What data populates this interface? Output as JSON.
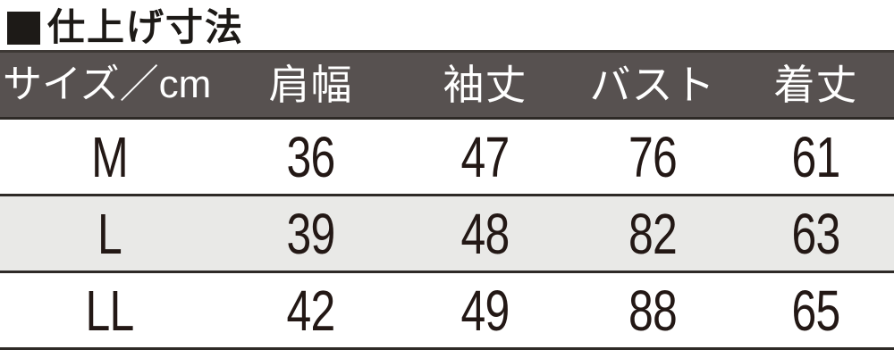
{
  "title": {
    "text": "仕上げ寸法"
  },
  "table": {
    "columns": [
      "サイズ／cm",
      "肩幅",
      "袖丈",
      "バスト",
      "着丈"
    ],
    "rows": [
      {
        "size": "M",
        "values": [
          "36",
          "47",
          "76",
          "61"
        ]
      },
      {
        "size": "L",
        "values": [
          "39",
          "48",
          "82",
          "63"
        ]
      },
      {
        "size": "LL",
        "values": [
          "42",
          "49",
          "88",
          "65"
        ]
      }
    ]
  },
  "colors": {
    "header_bg": "#575150",
    "header_text": "#ffffff",
    "alt_row_bg": "#e9e9e7",
    "rule_line": "#2e2a27",
    "body_text": "#231815",
    "title_text": "#1d1a17"
  }
}
